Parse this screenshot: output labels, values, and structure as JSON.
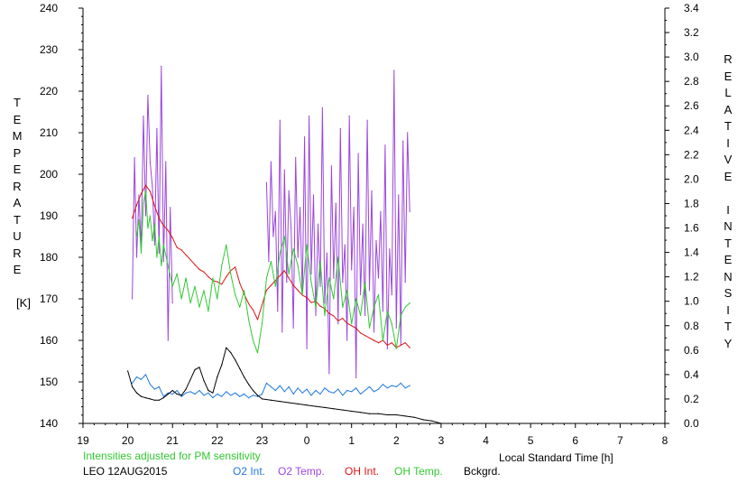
{
  "chart_data": {
    "type": "line",
    "title": "",
    "station": "LEO 12AUG2015",
    "note": "Intensities adjusted for PM sensitivity",
    "xlabel": "Local Standard Time [h]",
    "ylabel_left": [
      "T",
      "E",
      "M",
      "P",
      "E",
      "R",
      "A",
      "T",
      "U",
      "R",
      "E",
      "",
      "[K]"
    ],
    "ylabel_right": [
      "R",
      "E",
      "L",
      "A",
      "T",
      "I",
      "V",
      "E",
      "",
      "I",
      "N",
      "T",
      "E",
      "N",
      "S",
      "I",
      "T",
      "Y"
    ],
    "x_ticks": [
      "19",
      "20",
      "21",
      "22",
      "23",
      "0",
      "1",
      "2",
      "3",
      "4",
      "5",
      "6",
      "7",
      "8"
    ],
    "x_range": [
      19,
      32
    ],
    "y_left_range": [
      140,
      240
    ],
    "y_left_ticks": [
      "140",
      "150",
      "160",
      "170",
      "180",
      "190",
      "200",
      "210",
      "220",
      "230",
      "240"
    ],
    "y_right_range": [
      0.0,
      3.4
    ],
    "y_right_ticks": [
      "0.0",
      "0.2",
      "0.4",
      "0.6",
      "0.8",
      "1.0",
      "1.2",
      "1.4",
      "1.6",
      "1.8",
      "2.0",
      "2.2",
      "2.4",
      "2.6",
      "2.8",
      "3.0",
      "3.2",
      "3.4"
    ],
    "grid": false,
    "legend_position": "bottom",
    "colors": {
      "o2_int": "#1e78dc",
      "o2_temp": "#9b46dc",
      "oh_int": "#dc1414",
      "oh_temp": "#32c832",
      "bckgrd": "#000000"
    },
    "series": [
      {
        "name": "O2 Int.",
        "axis": "right",
        "x": [
          20.1,
          20.2,
          20.3,
          20.4,
          20.5,
          20.6,
          20.7,
          20.8,
          20.9,
          21.0,
          21.1,
          21.2,
          21.3,
          21.4,
          21.5,
          21.6,
          21.7,
          21.8,
          21.9,
          22.0,
          22.1,
          22.2,
          22.3,
          22.4,
          22.5,
          22.6,
          22.7,
          22.8,
          22.9,
          23.0,
          23.1,
          23.2,
          23.3,
          23.4,
          23.5,
          23.6,
          23.7,
          23.8,
          23.9,
          24.0,
          24.1,
          24.2,
          24.3,
          24.4,
          24.5,
          24.6,
          24.7,
          24.8,
          24.9,
          25.0,
          25.1,
          25.2,
          25.3,
          25.4,
          25.5,
          25.6,
          25.7,
          25.8,
          25.9,
          26.0,
          26.1,
          26.2,
          26.3
        ],
        "values": [
          0.33,
          0.38,
          0.36,
          0.4,
          0.32,
          0.28,
          0.3,
          0.22,
          0.25,
          0.24,
          0.27,
          0.22,
          0.25,
          0.26,
          0.24,
          0.27,
          0.23,
          0.25,
          0.21,
          0.24,
          0.22,
          0.26,
          0.23,
          0.25,
          0.22,
          0.24,
          0.21,
          0.23,
          0.22,
          0.24,
          0.33,
          0.3,
          0.27,
          0.31,
          0.26,
          0.3,
          0.24,
          0.29,
          0.25,
          0.28,
          0.23,
          0.27,
          0.24,
          0.29,
          0.26,
          0.25,
          0.28,
          0.23,
          0.27,
          0.26,
          0.29,
          0.24,
          0.27,
          0.3,
          0.26,
          0.28,
          0.32,
          0.29,
          0.31,
          0.3,
          0.33,
          0.29,
          0.31
        ]
      },
      {
        "name": "O2 Temp.",
        "axis": "left",
        "x": [
          20.1,
          20.15,
          20.2,
          20.25,
          20.3,
          20.35,
          20.4,
          20.45,
          20.5,
          20.55,
          20.6,
          20.65,
          20.7,
          20.75,
          20.8,
          20.85,
          20.9,
          20.95,
          21.0,
          23.1,
          23.15,
          23.2,
          23.25,
          23.3,
          23.35,
          23.4,
          23.45,
          23.5,
          23.55,
          23.6,
          23.65,
          23.7,
          23.75,
          23.8,
          23.85,
          23.9,
          23.95,
          24.0,
          24.05,
          24.1,
          24.15,
          24.2,
          24.25,
          24.3,
          24.35,
          24.4,
          24.45,
          24.5,
          24.55,
          24.6,
          24.65,
          24.7,
          24.75,
          24.8,
          24.85,
          24.9,
          24.95,
          25.0,
          25.05,
          25.1,
          25.15,
          25.2,
          25.25,
          25.3,
          25.35,
          25.4,
          25.45,
          25.5,
          25.55,
          25.6,
          25.65,
          25.7,
          25.75,
          25.8,
          25.85,
          25.9,
          25.95,
          26.0,
          26.05,
          26.1,
          26.15,
          26.2,
          26.25,
          26.3
        ],
        "values": [
          170,
          204,
          180,
          195,
          182,
          214,
          190,
          219,
          203,
          197,
          183,
          211,
          181,
          226,
          179,
          203,
          160,
          192,
          169,
          198,
          179,
          203,
          185,
          191,
          167,
          213,
          162,
          201,
          174,
          196,
          187,
          163,
          204,
          180,
          192,
          171,
          209,
          158,
          214,
          176,
          195,
          166,
          188,
          173,
          216,
          169,
          181,
          152,
          202,
          175,
          193,
          164,
          211,
          174,
          183,
          160,
          214,
          177,
          192,
          151,
          205,
          171,
          188,
          166,
          213,
          172,
          196,
          162,
          184,
          175,
          191,
          167,
          207,
          158,
          182,
          171,
          225,
          163,
          195,
          159,
          208,
          174,
          210,
          191
        ]
      },
      {
        "name": "OH Int.",
        "axis": "right",
        "x": [
          20.1,
          20.2,
          20.3,
          20.4,
          20.5,
          20.6,
          20.7,
          20.8,
          20.9,
          21.0,
          21.1,
          21.2,
          21.3,
          21.4,
          21.5,
          21.6,
          21.7,
          21.8,
          21.9,
          22.0,
          22.1,
          22.2,
          22.3,
          22.4,
          22.5,
          22.6,
          22.7,
          22.8,
          22.9,
          23.1,
          23.2,
          23.3,
          23.4,
          23.5,
          23.6,
          23.7,
          23.8,
          23.9,
          24.0,
          24.1,
          24.2,
          24.3,
          24.4,
          24.5,
          24.6,
          24.7,
          24.8,
          24.9,
          25.0,
          25.1,
          25.2,
          25.3,
          25.4,
          25.5,
          25.6,
          25.7,
          25.8,
          25.9,
          26.0,
          26.1,
          26.2,
          26.3
        ],
        "values": [
          1.68,
          1.79,
          1.88,
          1.95,
          1.9,
          1.78,
          1.68,
          1.62,
          1.58,
          1.52,
          1.44,
          1.42,
          1.38,
          1.34,
          1.3,
          1.26,
          1.24,
          1.2,
          1.17,
          1.16,
          1.14,
          1.2,
          1.25,
          1.28,
          1.15,
          1.06,
          0.98,
          0.93,
          0.85,
          1.09,
          1.13,
          1.17,
          1.21,
          1.25,
          1.19,
          1.13,
          1.09,
          1.05,
          1.03,
          0.99,
          1.0,
          0.96,
          0.94,
          0.9,
          0.88,
          0.84,
          0.86,
          0.82,
          0.8,
          0.78,
          0.74,
          0.72,
          0.7,
          0.68,
          0.66,
          0.68,
          0.64,
          0.66,
          0.62,
          0.64,
          0.66,
          0.62
        ]
      },
      {
        "name": "OH Temp.",
        "axis": "left",
        "x": [
          20.2,
          20.25,
          20.3,
          20.35,
          20.4,
          20.45,
          20.5,
          20.55,
          20.6,
          20.65,
          20.7,
          20.75,
          20.8,
          21.0,
          21.1,
          21.2,
          21.3,
          21.4,
          21.5,
          21.6,
          21.7,
          21.8,
          21.9,
          22.0,
          22.1,
          22.2,
          22.3,
          22.4,
          22.5,
          22.6,
          22.7,
          22.8,
          22.9,
          23.0,
          23.1,
          23.2,
          23.3,
          23.4,
          23.5,
          23.6,
          23.7,
          23.8,
          23.9,
          24.0,
          24.1,
          24.2,
          24.3,
          24.4,
          24.5,
          24.6,
          24.7,
          24.8,
          24.9,
          25.0,
          25.1,
          25.2,
          25.3,
          25.4,
          25.5,
          25.6,
          25.7,
          25.8,
          25.9,
          26.0,
          26.1,
          26.2,
          26.3
        ],
        "values": [
          185,
          189,
          181,
          193,
          196,
          187,
          190,
          184,
          188,
          180,
          185,
          178,
          183,
          173,
          176,
          170,
          175,
          169,
          173,
          168,
          172,
          167,
          175,
          170,
          178,
          183,
          176,
          171,
          168,
          172,
          165,
          160,
          157,
          164,
          175,
          179,
          173,
          181,
          185,
          176,
          182,
          178,
          171,
          183,
          174,
          168,
          179,
          166,
          175,
          170,
          180,
          168,
          172,
          164,
          170,
          166,
          174,
          163,
          168,
          171,
          160,
          167,
          164,
          158,
          166,
          168,
          169
        ]
      },
      {
        "name": "Bckgrd.",
        "axis": "right",
        "x": [
          20.0,
          20.1,
          20.2,
          20.3,
          20.4,
          20.5,
          20.6,
          20.7,
          20.8,
          20.9,
          21.0,
          21.1,
          21.2,
          21.3,
          21.4,
          21.5,
          21.6,
          21.7,
          21.8,
          21.9,
          22.0,
          22.1,
          22.2,
          22.3,
          22.4,
          22.5,
          22.6,
          22.7,
          22.8,
          22.9,
          23.0,
          23.2,
          23.4,
          23.6,
          23.8,
          24.0,
          24.2,
          24.4,
          24.6,
          24.8,
          25.0,
          25.2,
          25.4,
          25.6,
          25.8,
          26.0,
          26.2,
          26.4,
          26.6,
          26.8,
          27.0
        ],
        "values": [
          0.43,
          0.3,
          0.25,
          0.22,
          0.21,
          0.2,
          0.19,
          0.19,
          0.21,
          0.24,
          0.27,
          0.24,
          0.23,
          0.28,
          0.36,
          0.44,
          0.46,
          0.35,
          0.27,
          0.25,
          0.38,
          0.48,
          0.62,
          0.58,
          0.52,
          0.45,
          0.38,
          0.32,
          0.27,
          0.23,
          0.2,
          0.19,
          0.18,
          0.17,
          0.16,
          0.15,
          0.14,
          0.13,
          0.12,
          0.11,
          0.1,
          0.09,
          0.08,
          0.08,
          0.07,
          0.07,
          0.06,
          0.05,
          0.03,
          0.02,
          0.0
        ]
      }
    ]
  }
}
